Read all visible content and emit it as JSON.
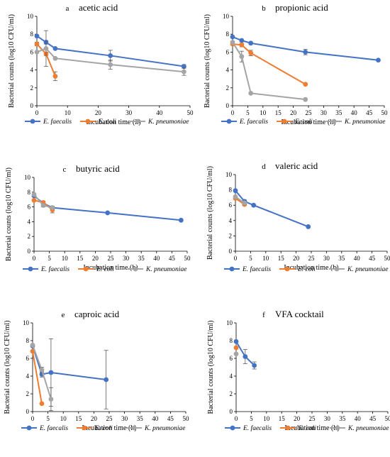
{
  "colors": {
    "E. faecalis": "#4472C4",
    "E. coli": "#ED7D31",
    "K. pneumoniae": "#A5A5A5"
  },
  "chart_data": [
    {
      "type": "line",
      "letter": "a",
      "title": "acetic acid",
      "xlabel": "Incubation time (h)",
      "ylabel": "Bacterial counts (log10 CFU/ml)",
      "xlim": [
        0,
        50
      ],
      "ylim": [
        0,
        10
      ],
      "xticks": [
        "0",
        "10",
        "20",
        "30",
        "40",
        "50"
      ],
      "yticks": [
        "0",
        "2",
        "4",
        "6",
        "8",
        "10"
      ],
      "legend_position": "bottom",
      "series": [
        {
          "name": "E. faecalis",
          "x": [
            0,
            3,
            6,
            24,
            48
          ],
          "y": [
            7.8,
            7.1,
            6.4,
            5.6,
            4.4
          ],
          "err": [
            0.1,
            0.2,
            0.1,
            0.6,
            0.2
          ]
        },
        {
          "name": "E. coli",
          "x": [
            0,
            3,
            6
          ],
          "y": [
            6.9,
            5.8,
            3.3
          ],
          "err": [
            0.2,
            0.2,
            0.5
          ]
        },
        {
          "name": "K. pneumoniae",
          "x": [
            0,
            3,
            6,
            24,
            48
          ],
          "y": [
            6.0,
            6.4,
            5.3,
            4.6,
            3.8
          ],
          "err": [
            0.1,
            2.0,
            0.1,
            0.5,
            0.4
          ]
        }
      ]
    },
    {
      "type": "line",
      "letter": "b",
      "title": "propionic acid",
      "xlabel": "Incubation time (h)",
      "ylabel": "Bacterial counts (log10 CFU/ml)",
      "xlim": [
        0,
        50
      ],
      "ylim": [
        0,
        10
      ],
      "xticks": [
        "0",
        "5",
        "10",
        "15",
        "20",
        "25",
        "30",
        "35",
        "40",
        "45",
        "50"
      ],
      "yticks": [
        "0",
        "2",
        "4",
        "6",
        "8",
        "10"
      ],
      "legend_position": "bottom",
      "series": [
        {
          "name": "E. faecalis",
          "x": [
            0,
            3,
            6,
            24,
            48
          ],
          "y": [
            7.7,
            7.3,
            7.0,
            6.0,
            5.1
          ],
          "err": [
            0.1,
            0.1,
            0.1,
            0.3,
            0.1
          ]
        },
        {
          "name": "E. coli",
          "x": [
            0,
            3,
            6,
            24
          ],
          "y": [
            6.9,
            6.8,
            5.9,
            2.4
          ],
          "err": [
            0.1,
            0.2,
            0.3,
            0.1
          ]
        },
        {
          "name": "K. pneumoniae",
          "x": [
            0,
            3,
            6,
            24
          ],
          "y": [
            7.1,
            5.5,
            1.4,
            0.7
          ],
          "err": [
            0.1,
            0.6,
            0.1,
            0.1
          ]
        }
      ]
    },
    {
      "type": "line",
      "letter": "c",
      "title": "butyric acid",
      "xlabel": "Incubation time (h)",
      "ylabel": "Bacterial counts (log10 CFU/ml)",
      "xlim": [
        0,
        50
      ],
      "ylim": [
        0,
        10
      ],
      "xticks": [
        "0",
        "5",
        "10",
        "15",
        "20",
        "25",
        "30",
        "35",
        "40",
        "45",
        "50"
      ],
      "yticks": [
        "0",
        "2",
        "4",
        "6",
        "8",
        "10"
      ],
      "legend_position": "bottom",
      "series": [
        {
          "name": "E. faecalis",
          "x": [
            0,
            3,
            6,
            24,
            48
          ],
          "y": [
            7.5,
            6.5,
            5.9,
            5.2,
            4.2
          ],
          "err": [
            0.1,
            0.1,
            0.1,
            0.1,
            0.1
          ]
        },
        {
          "name": "E. coli",
          "x": [
            0,
            3,
            6
          ],
          "y": [
            6.9,
            6.6,
            5.6
          ],
          "err": [
            0.1,
            0.2,
            0.4
          ]
        },
        {
          "name": "K. pneumoniae",
          "x": [
            0,
            3,
            6
          ],
          "y": [
            7.7,
            6.2,
            5.9
          ],
          "err": [
            0.1,
            0.2,
            0.2
          ]
        }
      ]
    },
    {
      "type": "line",
      "letter": "d",
      "title": "valeric acid",
      "xlabel": "Incubation time (h)",
      "ylabel": "Bacterial counts (log10 CFU/ml)",
      "xlim": [
        0,
        50
      ],
      "ylim": [
        0,
        10
      ],
      "xticks": [
        "0",
        "5",
        "10",
        "15",
        "20",
        "25",
        "30",
        "35",
        "40",
        "45",
        "50"
      ],
      "yticks": [
        "0",
        "2",
        "4",
        "6",
        "8",
        "10"
      ],
      "legend_position": "bottom",
      "series": [
        {
          "name": "E. faecalis",
          "x": [
            0,
            3,
            6,
            24
          ],
          "y": [
            7.9,
            6.5,
            6.0,
            3.2
          ],
          "err": [
            0.1,
            0.2,
            0.1,
            0.1
          ]
        },
        {
          "name": "E. coli",
          "x": [
            0,
            3
          ],
          "y": [
            6.9,
            6.1
          ],
          "err": [
            0.1,
            0.1
          ]
        },
        {
          "name": "K. pneumoniae",
          "x": [
            0,
            3
          ],
          "y": [
            7.1,
            6.3
          ],
          "err": [
            0.1,
            0.2
          ]
        }
      ]
    },
    {
      "type": "line",
      "letter": "e",
      "title": "caproic acid",
      "xlabel": "Incubation time (h)",
      "ylabel": "Bacterial counts (log10 CFU/ml)",
      "xlim": [
        0,
        50
      ],
      "ylim": [
        0,
        10
      ],
      "xticks": [
        "0",
        "5",
        "10",
        "15",
        "20",
        "25",
        "30",
        "35",
        "40",
        "45",
        "50"
      ],
      "yticks": [
        "0",
        "2",
        "4",
        "6",
        "8",
        "10"
      ],
      "legend_position": "bottom",
      "series": [
        {
          "name": "E. faecalis",
          "x": [
            0,
            3,
            6,
            24
          ],
          "y": [
            7.4,
            4.2,
            4.4,
            3.6
          ],
          "err": [
            0.1,
            0.3,
            3.8,
            3.3
          ]
        },
        {
          "name": "E. coli",
          "x": [
            0,
            3
          ],
          "y": [
            6.8,
            0.9
          ],
          "err": [
            0.1,
            0.1
          ]
        },
        {
          "name": "K. pneumoniae",
          "x": [
            0,
            3,
            6
          ],
          "y": [
            7.5,
            4.7,
            1.4
          ],
          "err": [
            0.1,
            0.3,
            1.3
          ]
        }
      ]
    },
    {
      "type": "line",
      "letter": "f",
      "title": "VFA cocktail",
      "xlabel": "Incubation time (h)",
      "ylabel": "Bacterial counts (log10 CFU/ml)",
      "xlim": [
        0,
        50
      ],
      "ylim": [
        0,
        10
      ],
      "xticks": [
        "0",
        "5",
        "10",
        "15",
        "20",
        "25",
        "30",
        "35",
        "40",
        "45",
        "50"
      ],
      "yticks": [
        "0",
        "2",
        "4",
        "6",
        "8",
        "10"
      ],
      "legend_position": "bottom",
      "series": [
        {
          "name": "E. faecalis",
          "x": [
            0,
            3,
            6
          ],
          "y": [
            7.9,
            6.2,
            5.2
          ],
          "err": [
            0.1,
            0.8,
            0.4
          ]
        },
        {
          "name": "E. coli",
          "x": [
            0
          ],
          "y": [
            7.2
          ],
          "err": [
            0.1
          ]
        },
        {
          "name": "K. pneumoniae",
          "x": [
            0
          ],
          "y": [
            6.5
          ],
          "err": [
            0.1
          ]
        }
      ]
    }
  ]
}
